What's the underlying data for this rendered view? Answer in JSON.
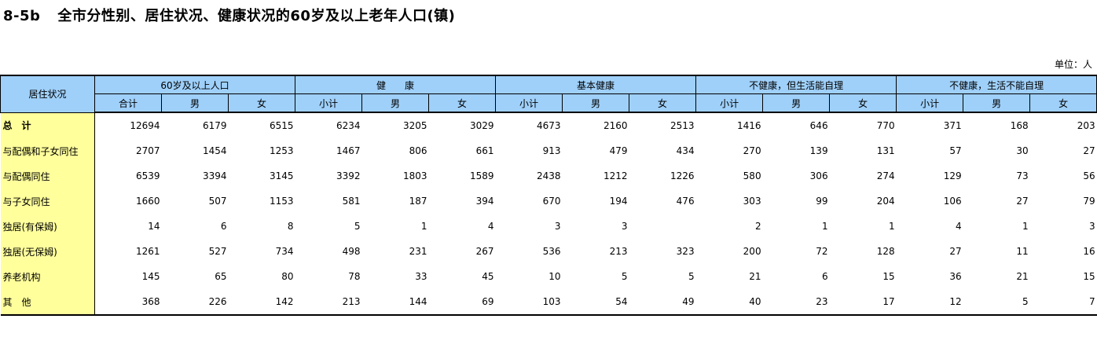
{
  "title": {
    "code": "8-5b",
    "text": "全市分性别、居住状况、健康状况的60岁及以上老年人口(镇)"
  },
  "unit": "单位：人",
  "table": {
    "row_header": "居住状况",
    "groups": [
      {
        "label": "60岁及以上人口",
        "subs": [
          "合计",
          "男",
          "女"
        ]
      },
      {
        "label": "健　　康",
        "subs": [
          "小计",
          "男",
          "女"
        ]
      },
      {
        "label": "基本健康",
        "subs": [
          "小计",
          "男",
          "女"
        ]
      },
      {
        "label": "不健康，但生活能自理",
        "subs": [
          "小计",
          "男",
          "女"
        ]
      },
      {
        "label": "不健康，生活不能自理",
        "subs": [
          "小计",
          "男",
          "女"
        ]
      }
    ],
    "rows": [
      {
        "label": "总　计",
        "values": [
          "12694",
          "6179",
          "6515",
          "6234",
          "3205",
          "3029",
          "4673",
          "2160",
          "2513",
          "1416",
          "646",
          "770",
          "371",
          "168",
          "203"
        ]
      },
      {
        "label": "与配偶和子女同住",
        "values": [
          "2707",
          "1454",
          "1253",
          "1467",
          "806",
          "661",
          "913",
          "479",
          "434",
          "270",
          "139",
          "131",
          "57",
          "30",
          "27"
        ]
      },
      {
        "label": "与配偶同住",
        "values": [
          "6539",
          "3394",
          "3145",
          "3392",
          "1803",
          "1589",
          "2438",
          "1212",
          "1226",
          "580",
          "306",
          "274",
          "129",
          "73",
          "56"
        ]
      },
      {
        "label": "与子女同住",
        "values": [
          "1660",
          "507",
          "1153",
          "581",
          "187",
          "394",
          "670",
          "194",
          "476",
          "303",
          "99",
          "204",
          "106",
          "27",
          "79"
        ]
      },
      {
        "label": "独居(有保姆)",
        "values": [
          "14",
          "6",
          "8",
          "5",
          "1",
          "4",
          "3",
          "3",
          "",
          "2",
          "1",
          "1",
          "4",
          "1",
          "3"
        ]
      },
      {
        "label": "独居(无保姆)",
        "values": [
          "1261",
          "527",
          "734",
          "498",
          "231",
          "267",
          "536",
          "213",
          "323",
          "200",
          "72",
          "128",
          "27",
          "11",
          "16"
        ]
      },
      {
        "label": "养老机构",
        "values": [
          "145",
          "65",
          "80",
          "78",
          "33",
          "45",
          "10",
          "5",
          "5",
          "21",
          "6",
          "15",
          "36",
          "21",
          "15"
        ]
      },
      {
        "label": "其　他",
        "values": [
          "368",
          "226",
          "142",
          "213",
          "144",
          "69",
          "103",
          "54",
          "49",
          "40",
          "23",
          "17",
          "12",
          "5",
          "7"
        ]
      }
    ]
  }
}
